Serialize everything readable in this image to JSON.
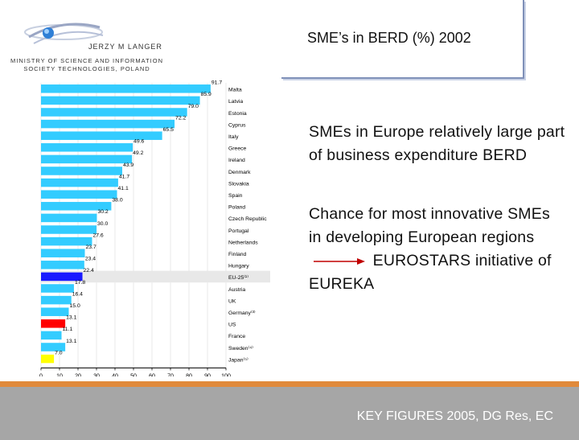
{
  "header": {
    "author": "JERZY M LANGER",
    "affiliation_line1": "MINISTRY OF SCIENCE AND INFORMATION",
    "affiliation_line2": "SOCIETY TECHNOLOGIES,  POLAND",
    "title": "SME’s in BERD (%) 2002"
  },
  "body": {
    "point1": "SMEs in Europe relatively large part of business expenditure BERD",
    "point2_before_arrow": "Chance for most innovative SMEs in developing European regions",
    "point2_after_arrow": "EUROSTARS initiative of EUREKA"
  },
  "footer": {
    "text": "KEY FIGURES 2005, DG Res, EC"
  },
  "colors": {
    "default_bar": "#33ccff",
    "eu_bar": "#1a1aff",
    "us_bar": "#ff0000",
    "japan_bar": "#ffff00",
    "footer_bg": "#a6a6a6",
    "footer_accent": "#e08a3c"
  },
  "chart_data": {
    "type": "bar",
    "orientation": "horizontal",
    "title": "",
    "xlabel": "",
    "ylabel": "",
    "xlim": [
      0,
      100
    ],
    "x_ticks": [
      "0",
      "10",
      "20",
      "30",
      "40",
      "50",
      "60",
      "70",
      "80",
      "90",
      "100"
    ],
    "categories": [
      "Malta",
      "Latvia",
      "Estonia",
      "Cyprus",
      "Italy",
      "Greece",
      "Ireland",
      "Denmark",
      "Slovakia",
      "Spain",
      "Poland",
      "Czech Republic",
      "Portugal",
      "Netherlands",
      "Finland",
      "Hungary",
      "EU-25⁽¹⁾",
      "Austria",
      "UK",
      "Germany⁽³⁾",
      "US",
      "France",
      "Sweden⁽⁴⁾",
      "Japan⁽⁵⁾"
    ],
    "value_labels": [
      "91.7",
      "85.9",
      "79.0",
      "72.2",
      "65.5",
      "49.6",
      "49.2",
      "43.9",
      "41.7",
      "41.1",
      "38.0",
      "30.2",
      "30.0",
      "27.6",
      "23.7",
      "23.4",
      "22.4",
      "17.8",
      "16.4",
      "15.0",
      "13.1",
      "11.1",
      "13.1",
      "7.0"
    ],
    "values": [
      91.7,
      85.9,
      79.0,
      72.2,
      65.5,
      49.6,
      49.2,
      43.9,
      41.7,
      41.1,
      38.0,
      30.2,
      30.0,
      27.6,
      23.7,
      23.4,
      22.4,
      17.8,
      16.4,
      15.0,
      13.1,
      11.1,
      13.1,
      7.0
    ],
    "highlight": {
      "EU-25⁽¹⁾": "eu_bar",
      "US": "us_bar",
      "Japan⁽⁵⁾": "japan_bar"
    }
  }
}
